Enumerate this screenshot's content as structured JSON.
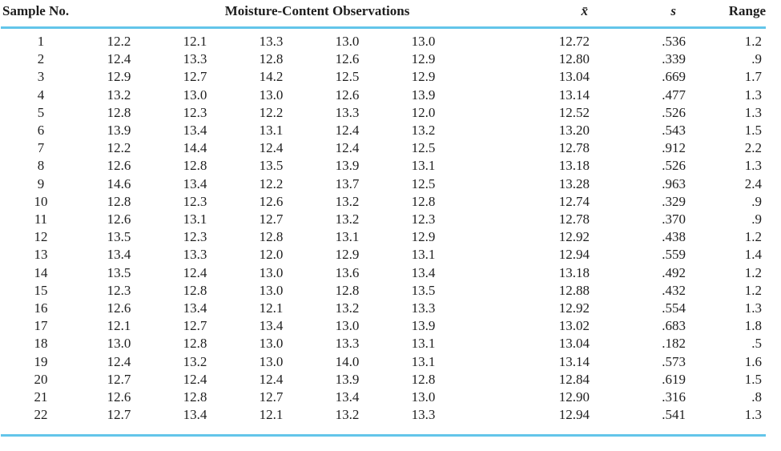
{
  "page": {
    "background_color": "#ffffff",
    "rule_color": "#63c5ea",
    "text_color": "#1e1e1e"
  },
  "table": {
    "headers": {
      "sample_no": "Sample No.",
      "observations": "Moisture-Content Observations",
      "mean": "x̄",
      "std_dev": "s",
      "range": "Range"
    },
    "rows": [
      {
        "sample": "1",
        "obs": [
          "12.2",
          "12.1",
          "13.3",
          "13.0",
          "13.0"
        ],
        "mean": "12.72",
        "s": ".536",
        "range": "1.2"
      },
      {
        "sample": "2",
        "obs": [
          "12.4",
          "13.3",
          "12.8",
          "12.6",
          "12.9"
        ],
        "mean": "12.80",
        "s": ".339",
        "range": ".9"
      },
      {
        "sample": "3",
        "obs": [
          "12.9",
          "12.7",
          "14.2",
          "12.5",
          "12.9"
        ],
        "mean": "13.04",
        "s": ".669",
        "range": "1.7"
      },
      {
        "sample": "4",
        "obs": [
          "13.2",
          "13.0",
          "13.0",
          "12.6",
          "13.9"
        ],
        "mean": "13.14",
        "s": ".477",
        "range": "1.3"
      },
      {
        "sample": "5",
        "obs": [
          "12.8",
          "12.3",
          "12.2",
          "13.3",
          "12.0"
        ],
        "mean": "12.52",
        "s": ".526",
        "range": "1.3"
      },
      {
        "sample": "6",
        "obs": [
          "13.9",
          "13.4",
          "13.1",
          "12.4",
          "13.2"
        ],
        "mean": "13.20",
        "s": ".543",
        "range": "1.5"
      },
      {
        "sample": "7",
        "obs": [
          "12.2",
          "14.4",
          "12.4",
          "12.4",
          "12.5"
        ],
        "mean": "12.78",
        "s": ".912",
        "range": "2.2"
      },
      {
        "sample": "8",
        "obs": [
          "12.6",
          "12.8",
          "13.5",
          "13.9",
          "13.1"
        ],
        "mean": "13.18",
        "s": ".526",
        "range": "1.3"
      },
      {
        "sample": "9",
        "obs": [
          "14.6",
          "13.4",
          "12.2",
          "13.7",
          "12.5"
        ],
        "mean": "13.28",
        "s": ".963",
        "range": "2.4"
      },
      {
        "sample": "10",
        "obs": [
          "12.8",
          "12.3",
          "12.6",
          "13.2",
          "12.8"
        ],
        "mean": "12.74",
        "s": ".329",
        "range": ".9"
      },
      {
        "sample": "11",
        "obs": [
          "12.6",
          "13.1",
          "12.7",
          "13.2",
          "12.3"
        ],
        "mean": "12.78",
        "s": ".370",
        "range": ".9"
      },
      {
        "sample": "12",
        "obs": [
          "13.5",
          "12.3",
          "12.8",
          "13.1",
          "12.9"
        ],
        "mean": "12.92",
        "s": ".438",
        "range": "1.2"
      },
      {
        "sample": "13",
        "obs": [
          "13.4",
          "13.3",
          "12.0",
          "12.9",
          "13.1"
        ],
        "mean": "12.94",
        "s": ".559",
        "range": "1.4"
      },
      {
        "sample": "14",
        "obs": [
          "13.5",
          "12.4",
          "13.0",
          "13.6",
          "13.4"
        ],
        "mean": "13.18",
        "s": ".492",
        "range": "1.2"
      },
      {
        "sample": "15",
        "obs": [
          "12.3",
          "12.8",
          "13.0",
          "12.8",
          "13.5"
        ],
        "mean": "12.88",
        "s": ".432",
        "range": "1.2"
      },
      {
        "sample": "16",
        "obs": [
          "12.6",
          "13.4",
          "12.1",
          "13.2",
          "13.3"
        ],
        "mean": "12.92",
        "s": ".554",
        "range": "1.3"
      },
      {
        "sample": "17",
        "obs": [
          "12.1",
          "12.7",
          "13.4",
          "13.0",
          "13.9"
        ],
        "mean": "13.02",
        "s": ".683",
        "range": "1.8"
      },
      {
        "sample": "18",
        "obs": [
          "13.0",
          "12.8",
          "13.0",
          "13.3",
          "13.1"
        ],
        "mean": "13.04",
        "s": ".182",
        "range": ".5"
      },
      {
        "sample": "19",
        "obs": [
          "12.4",
          "13.2",
          "13.0",
          "14.0",
          "13.1"
        ],
        "mean": "13.14",
        "s": ".573",
        "range": "1.6"
      },
      {
        "sample": "20",
        "obs": [
          "12.7",
          "12.4",
          "12.4",
          "13.9",
          "12.8"
        ],
        "mean": "12.84",
        "s": ".619",
        "range": "1.5"
      },
      {
        "sample": "21",
        "obs": [
          "12.6",
          "12.8",
          "12.7",
          "13.4",
          "13.0"
        ],
        "mean": "12.90",
        "s": ".316",
        "range": ".8"
      },
      {
        "sample": "22",
        "obs": [
          "12.7",
          "13.4",
          "12.1",
          "13.2",
          "13.3"
        ],
        "mean": "12.94",
        "s": ".541",
        "range": "1.3"
      }
    ]
  }
}
